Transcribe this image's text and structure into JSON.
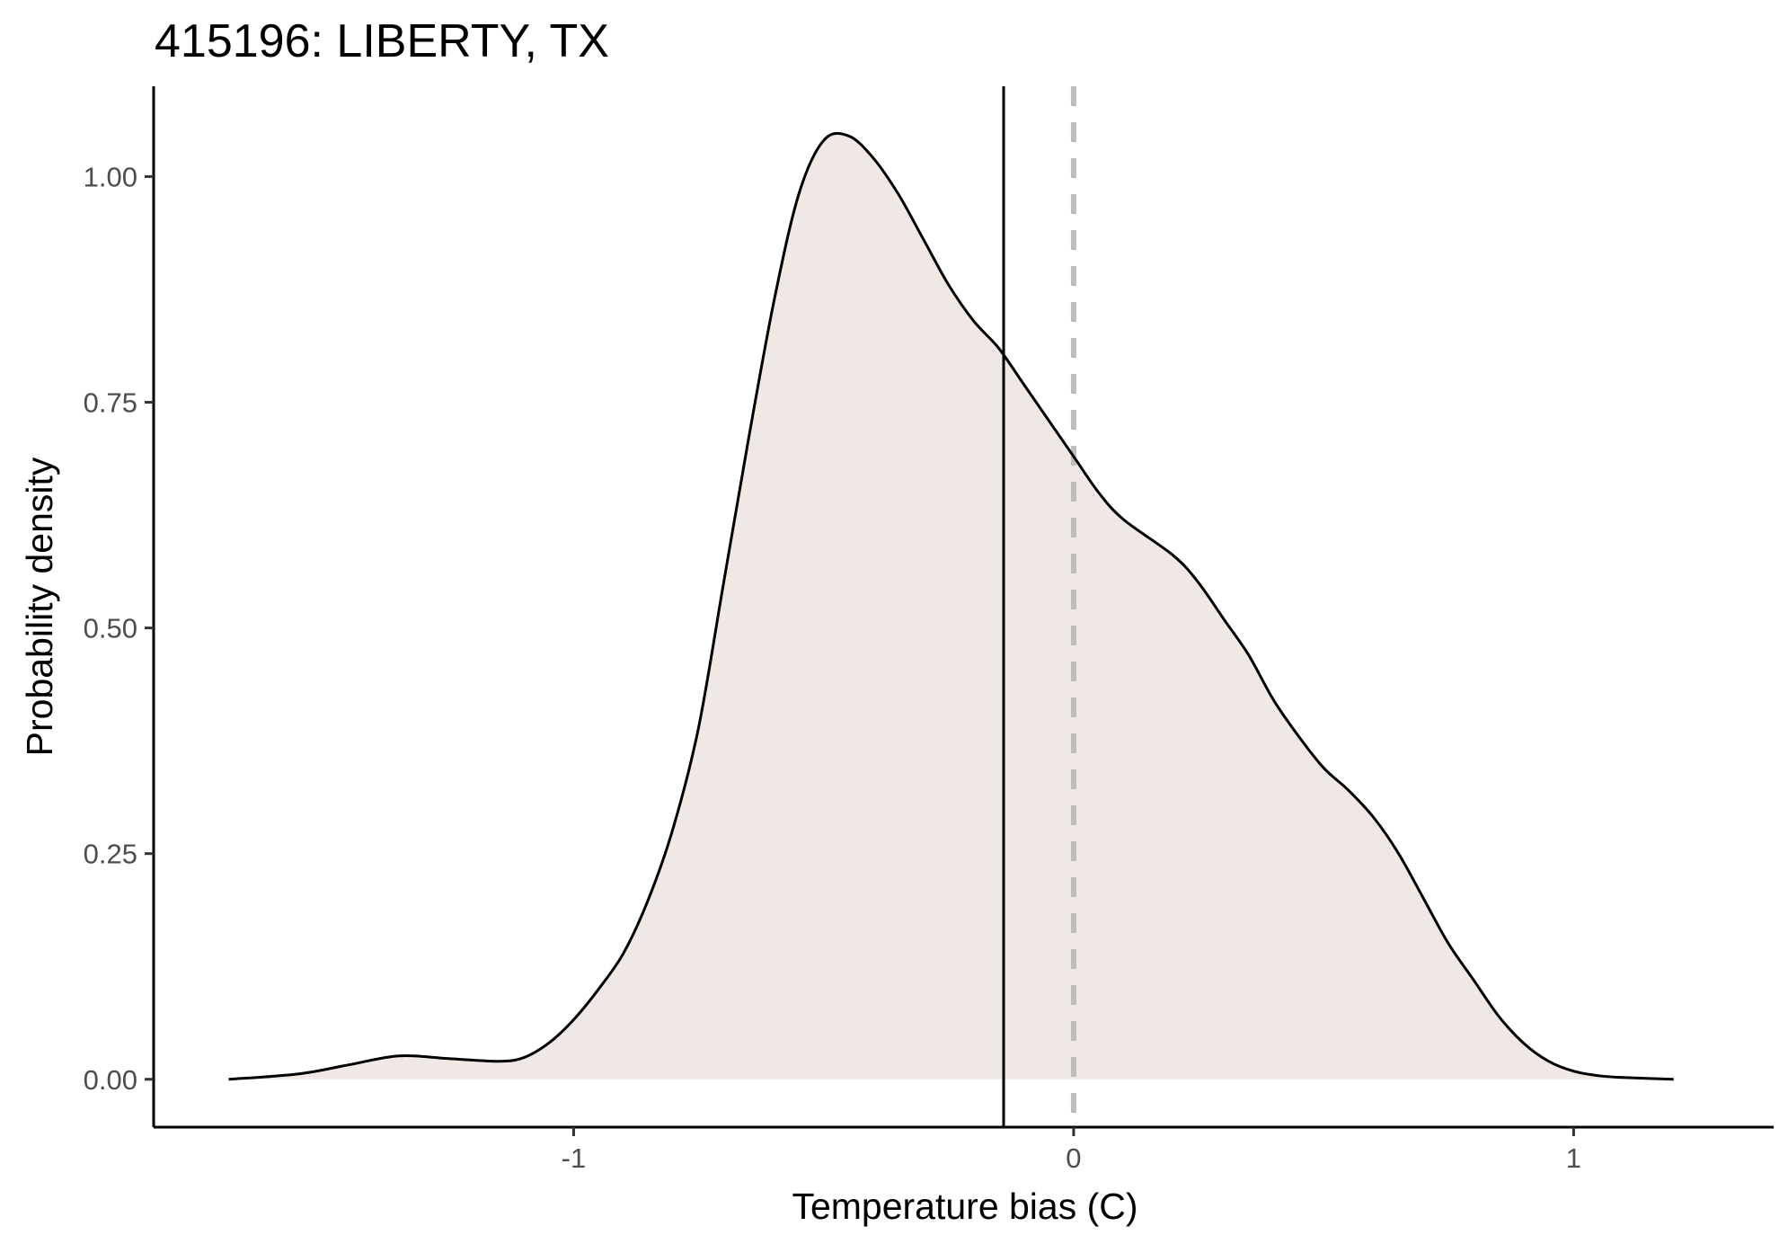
{
  "chart_data": {
    "type": "area",
    "title": "415196: LIBERTY, TX",
    "xlabel": "Temperature bias (C)",
    "ylabel": "Probability density",
    "xlim": [
      -1.84,
      1.4
    ],
    "ylim": [
      -0.053,
      1.1
    ],
    "x_ticks": [
      -1,
      0,
      1
    ],
    "x_tick_labels": [
      "-1",
      "0",
      "1"
    ],
    "y_ticks": [
      0,
      0.25,
      0.5,
      0.75,
      1.0
    ],
    "y_tick_labels": [
      "0.00",
      "0.25",
      "0.50",
      "0.75",
      "1.00"
    ],
    "grid": false,
    "legend": "none",
    "fill_color": "#efe8e5",
    "line_color": "#000000",
    "series": [
      {
        "x": [
          -1.69,
          -1.55,
          -1.45,
          -1.35,
          -1.25,
          -1.15,
          -1.1,
          -1.05,
          -1.0,
          -0.95,
          -0.9,
          -0.85,
          -0.8,
          -0.75,
          -0.7,
          -0.65,
          -0.6,
          -0.55,
          -0.5,
          -0.45,
          -0.4,
          -0.35,
          -0.3,
          -0.25,
          -0.2,
          -0.15,
          -0.1,
          -0.05,
          0.0,
          0.05,
          0.1,
          0.2,
          0.25,
          0.3,
          0.35,
          0.4,
          0.45,
          0.5,
          0.55,
          0.6,
          0.65,
          0.7,
          0.75,
          0.8,
          0.85,
          0.9,
          0.95,
          1.0,
          1.05,
          1.1,
          1.2
        ],
        "y": [
          0.0,
          0.006,
          0.016,
          0.026,
          0.023,
          0.02,
          0.024,
          0.04,
          0.066,
          0.1,
          0.14,
          0.2,
          0.28,
          0.39,
          0.55,
          0.71,
          0.86,
          0.98,
          1.04,
          1.045,
          1.02,
          0.98,
          0.93,
          0.88,
          0.84,
          0.81,
          0.77,
          0.73,
          0.69,
          0.65,
          0.62,
          0.58,
          0.55,
          0.51,
          0.47,
          0.42,
          0.38,
          0.345,
          0.32,
          0.29,
          0.25,
          0.2,
          0.15,
          0.11,
          0.07,
          0.04,
          0.02,
          0.009,
          0.004,
          0.002,
          0.0
        ]
      }
    ],
    "vlines": [
      {
        "x": -0.14,
        "style": "solid",
        "color": "#000000"
      },
      {
        "x": 0.0,
        "style": "dashed",
        "color": "#bdbdbd"
      }
    ]
  }
}
